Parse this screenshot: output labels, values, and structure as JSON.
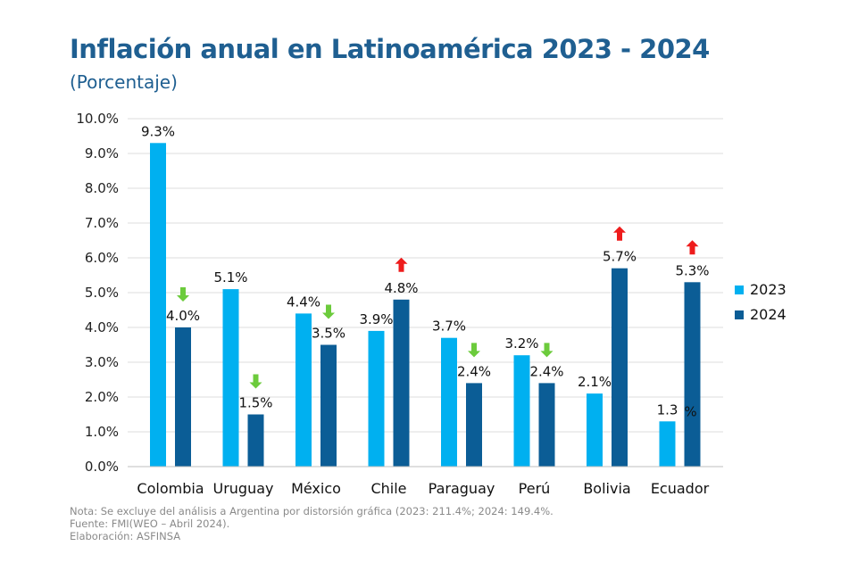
{
  "title": "Inflación anual en Latinoamérica 2023 - 2024",
  "subtitle": "(Porcentaje)",
  "notes": [
    "Nota: Se excluye del análisis a Argentina por distorsión gráfica (2023: 211.4%; 2024: 149.4%.",
    "Fuente: FMI(WEO – Abril 2024).",
    "Elaboración: ASFINSA"
  ],
  "colors": {
    "series_2023": "#00b0f0",
    "series_2024": "#0b5d96",
    "arrow_down": "#6ccb3c",
    "arrow_up": "#ee1c1c"
  },
  "chart_data": {
    "type": "bar",
    "title": "Inflación anual en Latinoamérica 2023 - 2024",
    "subtitle": "(Porcentaje)",
    "categories": [
      "Colombia",
      "Uruguay",
      "México",
      "Chile",
      "Paraguay",
      "Perú",
      "Bolivia",
      "Ecuador"
    ],
    "series": [
      {
        "name": "2023",
        "values": [
          9.3,
          5.1,
          4.4,
          3.9,
          3.7,
          3.2,
          2.1,
          1.3
        ],
        "labels": [
          "9.3%",
          "5.1%",
          "4.4%",
          "3.9%",
          "3.7%",
          "3.2%",
          "2.1%",
          "1.3"
        ]
      },
      {
        "name": "2024",
        "values": [
          4.0,
          1.5,
          3.5,
          4.8,
          2.4,
          2.4,
          5.7,
          5.3
        ],
        "labels": [
          "4.0%",
          "1.5%",
          "3.5%",
          "4.8%",
          "2.4%",
          "2.4%",
          "5.7%",
          "5.3%"
        ]
      }
    ],
    "trend_arrows": [
      "down",
      "down",
      "down",
      "up",
      "down",
      "down",
      "up",
      "up"
    ],
    "stray_label": "%",
    "ylim": [
      0,
      10
    ],
    "yticks": [
      "0.0%",
      "1.0%",
      "2.0%",
      "3.0%",
      "4.0%",
      "5.0%",
      "6.0%",
      "7.0%",
      "8.0%",
      "9.0%",
      "10.0%"
    ],
    "grid": true,
    "legend_position": "right"
  }
}
